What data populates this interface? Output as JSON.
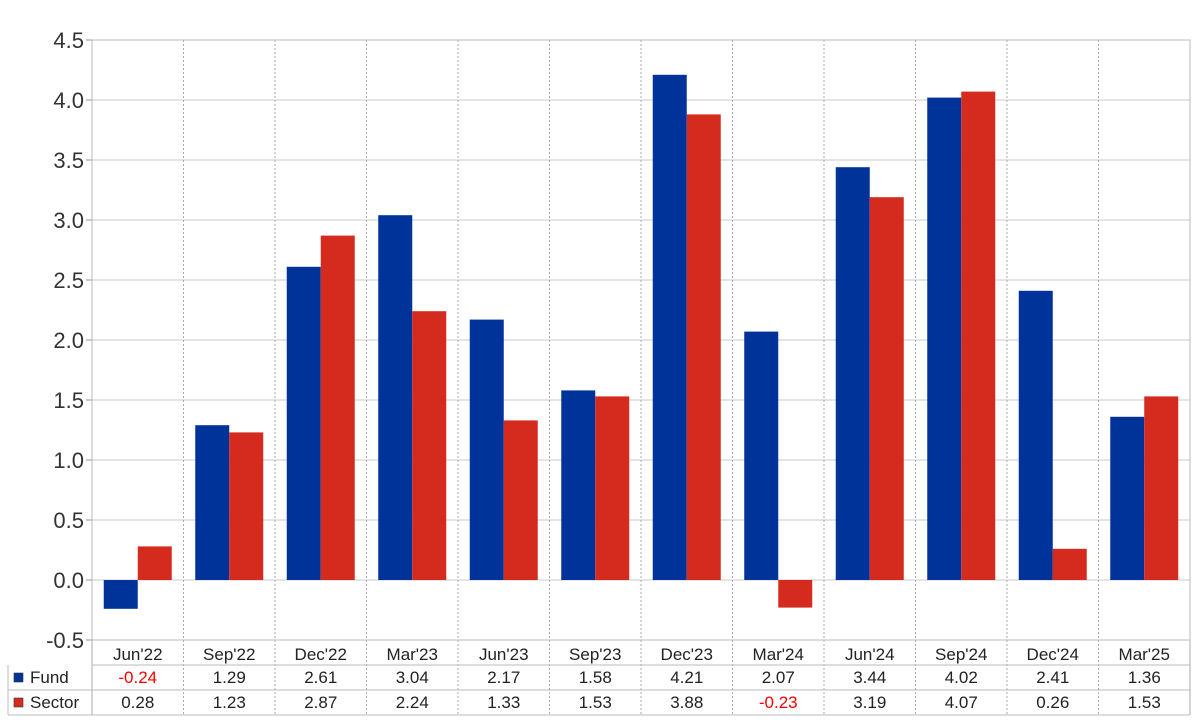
{
  "chart_data": {
    "type": "bar",
    "categories": [
      "Jun'22",
      "Sep'22",
      "Dec'22",
      "Mar'23",
      "Jun'23",
      "Sep'23",
      "Dec'23",
      "Mar'24",
      "Jun'24",
      "Sep'24",
      "Dec'24",
      "Mar'25"
    ],
    "series": [
      {
        "name": "Fund",
        "color": "#003399",
        "values": [
          -0.24,
          1.29,
          2.61,
          3.04,
          2.17,
          1.58,
          4.21,
          2.07,
          3.44,
          4.02,
          2.41,
          1.36
        ]
      },
      {
        "name": "Sector",
        "color": "#D52B1E",
        "values": [
          0.28,
          1.23,
          2.87,
          2.24,
          1.33,
          1.53,
          3.88,
          -0.23,
          3.19,
          4.07,
          0.26,
          1.53
        ]
      }
    ],
    "table_values": {
      "Fund": [
        "-0.24",
        "1.29",
        "2.61",
        "3.04",
        "2.17",
        "1.58",
        "4.21",
        "2.07",
        "3.44",
        "4.02",
        "2.41",
        "1.36"
      ],
      "Sector": [
        "0.28",
        "1.23",
        "2.87",
        "2.24",
        "1.33",
        "1.53",
        "3.88",
        "-0.23",
        "3.19",
        "4.07",
        "0.26",
        "1.53"
      ]
    },
    "y_ticks": [
      "4.5",
      "4.0",
      "3.5",
      "3.0",
      "2.5",
      "2.0",
      "1.5",
      "1.0",
      "0.5",
      "0.0",
      "-0.5"
    ],
    "ylim": [
      -0.5,
      4.5
    ],
    "negative_value_color": "#FF0000",
    "grid": true,
    "legend": "table-bottom"
  }
}
